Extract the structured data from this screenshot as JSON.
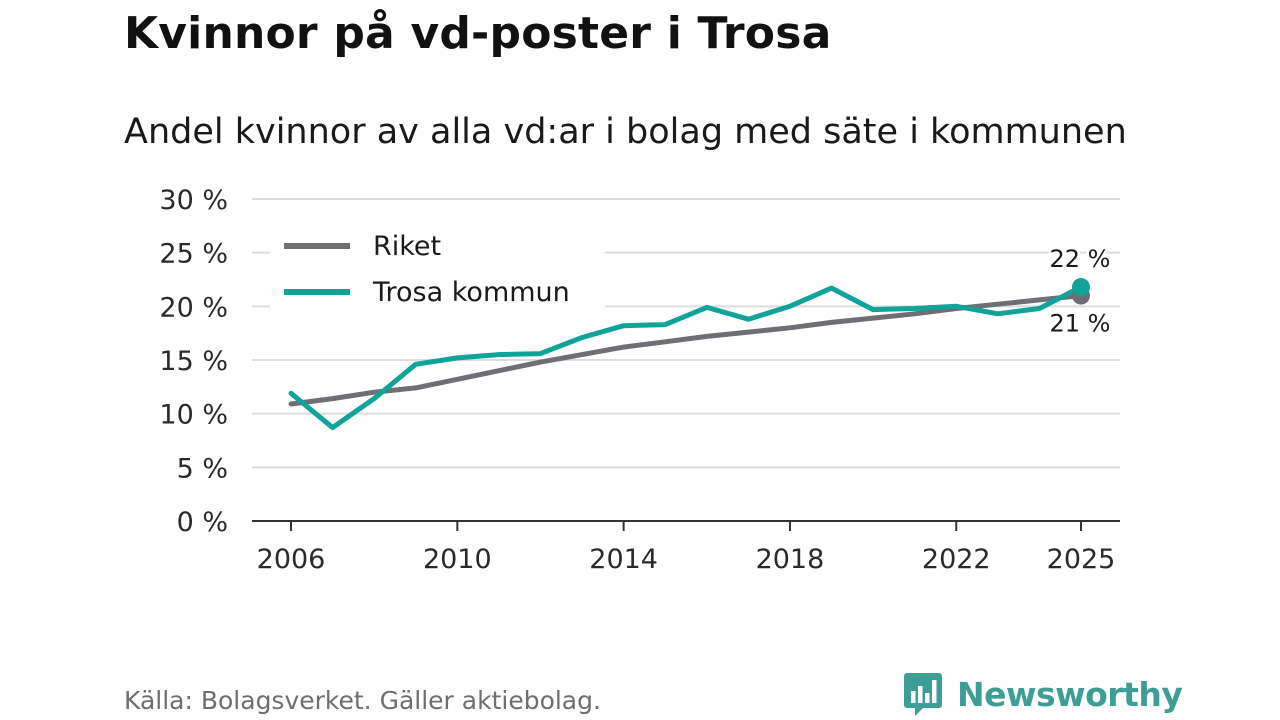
{
  "title": "Kvinnor på vd-poster i Trosa",
  "subtitle": "Andel kvinnor av alla vd:ar i bolag med säte i kommunen",
  "source": "Källa: Bolagsverket. Gäller aktiebolag.",
  "brand": {
    "name": "Newsworthy",
    "color": "#3d9e96"
  },
  "chart_data": {
    "type": "line",
    "title": "Kvinnor på vd-poster i Trosa",
    "subtitle": "Andel kvinnor av alla vd:ar i bolag med säte i kommunen",
    "xlabel": "",
    "ylabel": "",
    "ylim": [
      0,
      30
    ],
    "xlim": [
      2006,
      2025
    ],
    "y_ticks": [
      0,
      5,
      10,
      15,
      20,
      25,
      30
    ],
    "y_tick_labels": [
      "0 %",
      "5 %",
      "10 %",
      "15 %",
      "20 %",
      "25 %",
      "30 %"
    ],
    "x_ticks": [
      2006,
      2010,
      2014,
      2018,
      2022,
      2025
    ],
    "x_tick_labels": [
      "2006",
      "2010",
      "2014",
      "2018",
      "2022",
      "2025"
    ],
    "grid": true,
    "legend_position": "top-left",
    "x": [
      2006,
      2007,
      2008,
      2009,
      2010,
      2011,
      2012,
      2013,
      2014,
      2015,
      2016,
      2017,
      2018,
      2019,
      2020,
      2021,
      2022,
      2023,
      2024,
      2025
    ],
    "series": [
      {
        "name": "Riket",
        "color": "#706e75",
        "values": [
          10.9,
          11.4,
          12.0,
          12.4,
          13.2,
          14.0,
          14.8,
          15.5,
          16.2,
          16.7,
          17.2,
          17.6,
          18.0,
          18.5,
          18.9,
          19.3,
          19.8,
          20.2,
          20.6,
          21.0
        ],
        "end_label": "21 %"
      },
      {
        "name": "Trosa kommun",
        "color": "#0fa39a",
        "values": [
          11.9,
          8.7,
          11.4,
          14.6,
          15.2,
          15.5,
          15.6,
          17.1,
          18.2,
          18.3,
          19.9,
          18.8,
          20.0,
          21.7,
          19.7,
          19.8,
          20.0,
          19.3,
          19.8,
          21.8
        ],
        "end_label": "22 %"
      }
    ]
  }
}
